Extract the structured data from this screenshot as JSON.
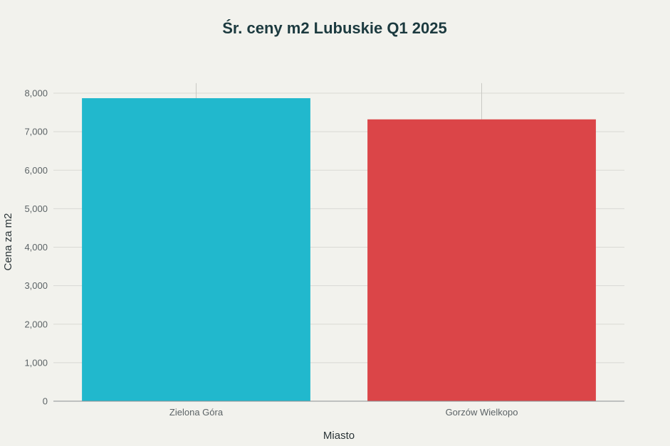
{
  "chart_data": {
    "type": "bar",
    "title": "Śr. ceny m2 Lubuskie Q1 2025",
    "xlabel": "Miasto",
    "ylabel": "Cena za m2",
    "categories": [
      "Zielona Góra",
      "Gorzów Wielkopo"
    ],
    "values": [
      7870,
      7320
    ],
    "error_bars": [
      {
        "low": 7870,
        "high": 8260
      },
      {
        "low": 7320,
        "high": 8260
      }
    ],
    "bar_colors": [
      "#21b8cd",
      "#db4548"
    ],
    "ylim": [
      0,
      8000
    ],
    "yticks": [
      0,
      1000,
      2000,
      3000,
      4000,
      5000,
      6000,
      7000,
      8000
    ],
    "ytick_labels": [
      "0",
      "1,000",
      "2,000",
      "3,000",
      "4,000",
      "5,000",
      "6,000",
      "7,000",
      "8,000"
    ],
    "grid": true,
    "legend": "none"
  },
  "colors": {
    "background": "#f2f2ed",
    "grid": "#d9d9d4",
    "axis": "#8a8f91"
  }
}
